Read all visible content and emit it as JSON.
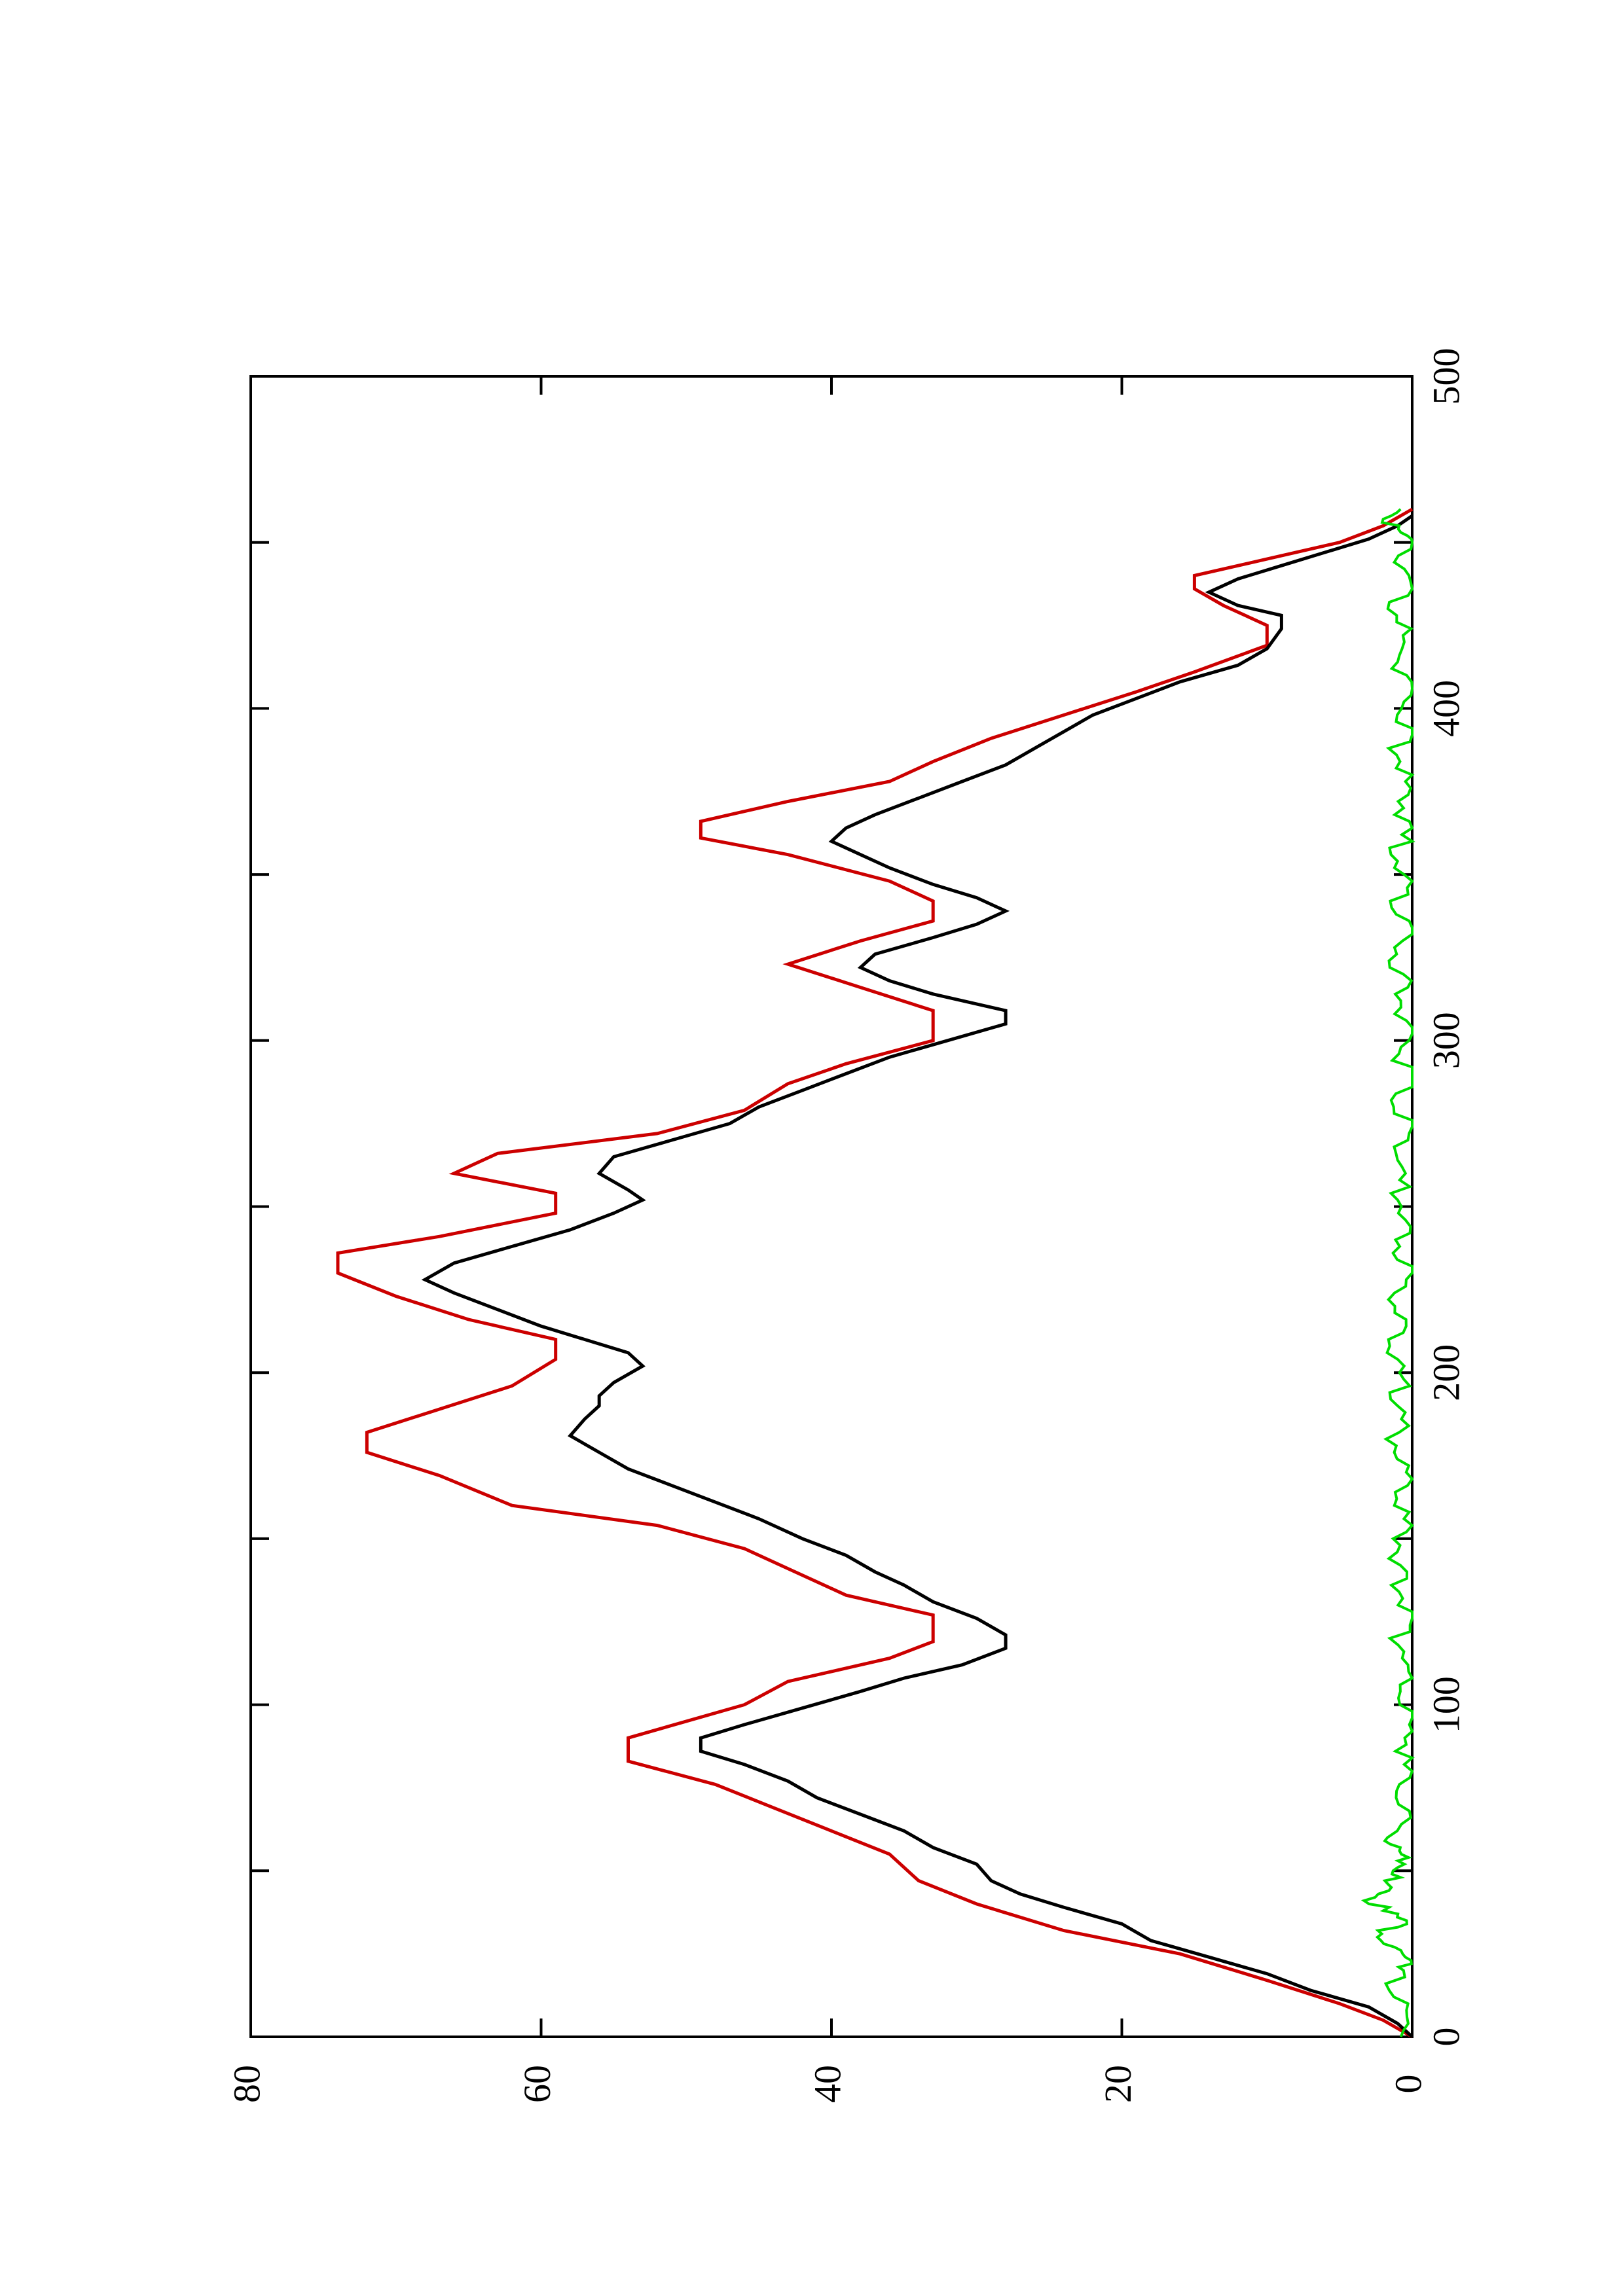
{
  "chart_data": {
    "type": "line",
    "orientation": "rotated-90-ccw",
    "title": "",
    "xlabel": "",
    "ylabel": "",
    "xlim": [
      0,
      500
    ],
    "ylim": [
      0,
      80
    ],
    "x_ticks": [
      0,
      100,
      200,
      300,
      400,
      500
    ],
    "y_ticks": [
      0,
      20,
      40,
      60,
      80
    ],
    "x_minor_ticks": [
      50,
      150,
      250,
      350,
      450
    ],
    "grid": false,
    "legend": "none",
    "series": [
      {
        "color": "#cc0000",
        "style": "step",
        "points": [
          [
            0,
            0
          ],
          [
            5,
            2
          ],
          [
            10,
            5
          ],
          [
            17,
            10
          ],
          [
            25,
            16
          ],
          [
            32,
            24
          ],
          [
            40,
            30
          ],
          [
            47,
            34
          ],
          [
            55,
            36
          ],
          [
            62,
            40
          ],
          [
            69,
            44
          ],
          [
            76,
            48
          ],
          [
            83,
            54
          ],
          [
            90,
            54
          ],
          [
            100,
            46
          ],
          [
            107,
            43
          ],
          [
            114,
            36
          ],
          [
            119,
            33
          ],
          [
            127,
            33
          ],
          [
            133,
            39
          ],
          [
            141,
            43
          ],
          [
            147,
            46
          ],
          [
            154,
            52
          ],
          [
            160,
            62
          ],
          [
            169,
            67
          ],
          [
            176,
            72
          ],
          [
            182,
            72
          ],
          [
            189,
            67
          ],
          [
            196,
            62
          ],
          [
            204,
            59
          ],
          [
            210,
            59
          ],
          [
            216,
            65
          ],
          [
            223,
            70
          ],
          [
            230,
            74
          ],
          [
            236,
            74
          ],
          [
            241,
            67
          ],
          [
            248,
            59
          ],
          [
            254,
            59
          ],
          [
            260,
            66
          ],
          [
            266,
            63
          ],
          [
            272,
            52
          ],
          [
            279,
            46
          ],
          [
            287,
            43
          ],
          [
            293,
            39
          ],
          [
            300,
            33
          ],
          [
            309,
            33
          ],
          [
            316,
            38
          ],
          [
            323,
            43
          ],
          [
            330,
            38
          ],
          [
            336,
            33
          ],
          [
            342,
            33
          ],
          [
            348,
            36
          ],
          [
            356,
            43
          ],
          [
            361,
            49
          ],
          [
            366,
            49
          ],
          [
            372,
            43
          ],
          [
            378,
            36
          ],
          [
            384,
            33
          ],
          [
            391,
            29
          ],
          [
            398,
            24
          ],
          [
            405,
            19
          ],
          [
            411,
            15
          ],
          [
            419,
            10
          ],
          [
            425,
            10
          ],
          [
            431,
            13
          ],
          [
            436,
            15
          ],
          [
            440,
            15
          ],
          [
            445,
            10
          ],
          [
            450,
            5
          ],
          [
            455,
            2
          ],
          [
            460,
            0
          ]
        ]
      },
      {
        "color": "#000000",
        "style": "line",
        "points": [
          [
            0,
            0
          ],
          [
            4,
            1
          ],
          [
            9,
            3
          ],
          [
            14,
            7
          ],
          [
            19,
            10
          ],
          [
            24,
            14
          ],
          [
            29,
            18
          ],
          [
            34,
            20
          ],
          [
            39,
            24
          ],
          [
            43,
            27
          ],
          [
            47,
            29
          ],
          [
            52,
            30
          ],
          [
            57,
            33
          ],
          [
            62,
            35
          ],
          [
            67,
            38
          ],
          [
            72,
            41
          ],
          [
            77,
            43
          ],
          [
            82,
            46
          ],
          [
            86,
            49
          ],
          [
            90,
            49
          ],
          [
            94,
            46
          ],
          [
            99,
            42
          ],
          [
            104,
            38
          ],
          [
            108,
            35
          ],
          [
            112,
            31
          ],
          [
            117,
            28
          ],
          [
            121,
            28
          ],
          [
            126,
            30
          ],
          [
            131,
            33
          ],
          [
            136,
            35
          ],
          [
            140,
            37
          ],
          [
            145,
            39
          ],
          [
            150,
            42
          ],
          [
            156,
            45
          ],
          [
            161,
            48
          ],
          [
            166,
            51
          ],
          [
            171,
            54
          ],
          [
            176,
            56
          ],
          [
            181,
            58
          ],
          [
            186,
            57
          ],
          [
            190,
            56
          ],
          [
            193,
            56
          ],
          [
            197,
            55
          ],
          [
            202,
            53
          ],
          [
            206,
            54
          ],
          [
            210,
            57
          ],
          [
            214,
            60
          ],
          [
            219,
            63
          ],
          [
            224,
            66
          ],
          [
            228,
            68
          ],
          [
            233,
            66
          ],
          [
            238,
            62
          ],
          [
            243,
            58
          ],
          [
            248,
            55
          ],
          [
            252,
            53
          ],
          [
            255,
            54
          ],
          [
            260,
            56
          ],
          [
            265,
            55
          ],
          [
            270,
            51
          ],
          [
            275,
            47
          ],
          [
            280,
            45
          ],
          [
            285,
            42
          ],
          [
            290,
            39
          ],
          [
            295,
            36
          ],
          [
            300,
            32
          ],
          [
            305,
            28
          ],
          [
            309,
            28
          ],
          [
            314,
            33
          ],
          [
            318,
            36
          ],
          [
            322,
            38
          ],
          [
            326,
            37
          ],
          [
            331,
            33
          ],
          [
            335,
            30
          ],
          [
            339,
            28
          ],
          [
            343,
            30
          ],
          [
            347,
            33
          ],
          [
            352,
            36
          ],
          [
            356,
            38
          ],
          [
            360,
            40
          ],
          [
            364,
            39
          ],
          [
            368,
            37
          ],
          [
            373,
            34
          ],
          [
            378,
            31
          ],
          [
            383,
            28
          ],
          [
            388,
            26
          ],
          [
            393,
            24
          ],
          [
            398,
            22
          ],
          [
            403,
            19
          ],
          [
            408,
            16
          ],
          [
            413,
            12
          ],
          [
            418,
            10
          ],
          [
            424,
            9
          ],
          [
            428,
            9
          ],
          [
            431,
            12
          ],
          [
            435,
            14
          ],
          [
            439,
            12
          ],
          [
            443,
            9
          ],
          [
            447,
            6
          ],
          [
            451,
            3
          ],
          [
            455,
            1
          ],
          [
            458,
            0
          ]
        ]
      },
      {
        "color": "#00dd00",
        "style": "noisy",
        "points": [
          [
            0,
            0.3
          ],
          [
            10,
            0.8
          ],
          [
            20,
            1.2
          ],
          [
            25,
            0.4
          ],
          [
            30,
            2.2
          ],
          [
            35,
            0.9
          ],
          [
            40,
            2.8
          ],
          [
            45,
            1.0
          ],
          [
            50,
            2.0
          ],
          [
            55,
            0.5
          ],
          [
            60,
            1.2
          ],
          [
            70,
            0.3
          ],
          [
            80,
            0.8
          ],
          [
            90,
            0.2
          ],
          [
            100,
            0.6
          ],
          [
            110,
            0.3
          ],
          [
            120,
            0.7
          ],
          [
            130,
            0.5
          ],
          [
            140,
            0.9
          ],
          [
            150,
            0.6
          ],
          [
            160,
            0.8
          ],
          [
            170,
            0.5
          ],
          [
            180,
            1.0
          ],
          [
            190,
            0.7
          ],
          [
            200,
            1.1
          ],
          [
            210,
            0.8
          ],
          [
            220,
            0.9
          ],
          [
            230,
            0.6
          ],
          [
            240,
            0.8
          ],
          [
            250,
            0.6
          ],
          [
            260,
            1.0
          ],
          [
            270,
            0.7
          ],
          [
            280,
            0.8
          ],
          [
            290,
            0.5
          ],
          [
            300,
            0.7
          ],
          [
            310,
            0.6
          ],
          [
            320,
            0.9
          ],
          [
            330,
            0.8
          ],
          [
            340,
            0.6
          ],
          [
            350,
            0.7
          ],
          [
            360,
            0.8
          ],
          [
            370,
            0.5
          ],
          [
            380,
            0.7
          ],
          [
            390,
            0.9
          ],
          [
            400,
            0.5
          ],
          [
            410,
            0.7
          ],
          [
            420,
            0.6
          ],
          [
            430,
            0.8
          ],
          [
            440,
            0.5
          ],
          [
            450,
            0.6
          ],
          [
            455,
            1.6
          ],
          [
            460,
            0.8
          ]
        ]
      }
    ]
  }
}
